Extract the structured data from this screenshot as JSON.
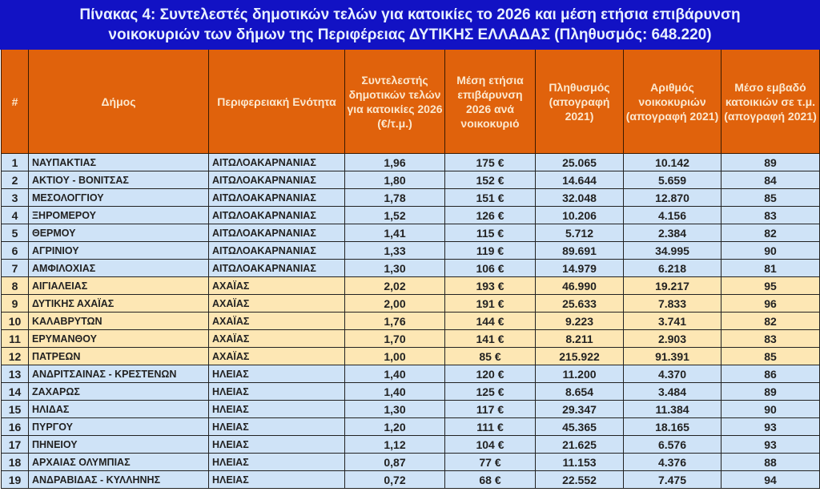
{
  "title": {
    "line1": "Πίνακας 4: Συντελεστές δημοτικών τελών για κατοικίες το 2026 και μέση ετήσια επιβάρυνση",
    "line2": "νοικοκυριών των δήμων της Περιφέρειας ΔΥΤΙΚΗΣ ΕΛΛΑΔΑΣ  (Πληθυσμός: 648.220)"
  },
  "colors": {
    "title_bg": "#1212c4",
    "header_bg": "#e0620c",
    "row_blue": "#cfe3f7",
    "row_yellow": "#fde7b4"
  },
  "headers": [
    "#",
    "Δήμος",
    "Περιφερειακή Ενότητα",
    "Συντελεστής δημοτικών τελών για κατοικίες 2026 (€/τ.μ.)",
    "Μέση ετήσια επιβάρυνση 2026 ανά νοικοκυριό",
    "Πληθυσμός (απογραφή 2021)",
    "Αριθμός νοικοκυριών (απογραφή 2021)",
    "Μέσο εμβαδό κατοικιών σε τ.μ. (απογραφή 2021)"
  ],
  "rows": [
    [
      "1",
      "ΝΑΥΠΑΚΤΙΑΣ",
      "ΑΙΤΩΛΟΑΚΑΡΝΑΝΙΑΣ",
      "1,96",
      "175 €",
      "25.065",
      "10.142",
      "89"
    ],
    [
      "2",
      "ΑΚΤΙΟΥ - ΒΟΝΙΤΣΑΣ",
      "ΑΙΤΩΛΟΑΚΑΡΝΑΝΙΑΣ",
      "1,80",
      "152 €",
      "14.644",
      "5.659",
      "84"
    ],
    [
      "3",
      "ΜΕΣΟΛΟΓΓΙΟΥ",
      "ΑΙΤΩΛΟΑΚΑΡΝΑΝΙΑΣ",
      "1,78",
      "151 €",
      "32.048",
      "12.870",
      "85"
    ],
    [
      "4",
      "ΞΗΡΟΜΕΡΟΥ",
      "ΑΙΤΩΛΟΑΚΑΡΝΑΝΙΑΣ",
      "1,52",
      "126 €",
      "10.206",
      "4.156",
      "83"
    ],
    [
      "5",
      "ΘΕΡΜΟΥ",
      "ΑΙΤΩΛΟΑΚΑΡΝΑΝΙΑΣ",
      "1,41",
      "115 €",
      "5.712",
      "2.384",
      "82"
    ],
    [
      "6",
      "ΑΓΡΙΝΙΟΥ",
      "ΑΙΤΩΛΟΑΚΑΡΝΑΝΙΑΣ",
      "1,33",
      "119 €",
      "89.691",
      "34.995",
      "90"
    ],
    [
      "7",
      "ΑΜΦΙΛΟΧΙΑΣ",
      "ΑΙΤΩΛΟΑΚΑΡΝΑΝΙΑΣ",
      "1,30",
      "106 €",
      "14.979",
      "6.218",
      "81"
    ],
    [
      "8",
      "ΑΙΓΙΑΛΕΙΑΣ",
      "ΑΧΑΪΑΣ",
      "2,02",
      "193 €",
      "46.990",
      "19.217",
      "95"
    ],
    [
      "9",
      "ΔΥΤΙΚΗΣ ΑΧΑΪΑΣ",
      "ΑΧΑΪΑΣ",
      "2,00",
      "191 €",
      "25.633",
      "7.833",
      "96"
    ],
    [
      "10",
      "ΚΑΛΑΒΡΥΤΩΝ",
      "ΑΧΑΪΑΣ",
      "1,76",
      "144 €",
      "9.223",
      "3.741",
      "82"
    ],
    [
      "11",
      "ΕΡΥΜΑΝΘΟΥ",
      "ΑΧΑΪΑΣ",
      "1,70",
      "141 €",
      "8.211",
      "2.903",
      "83"
    ],
    [
      "12",
      "ΠΑΤΡΕΩΝ",
      "ΑΧΑΪΑΣ",
      "1,00",
      "85 €",
      "215.922",
      "91.391",
      "85"
    ],
    [
      "13",
      "ΑΝΔΡΙΤΣΑΙΝΑΣ - ΚΡΕΣΤΕΝΩΝ",
      "ΗΛΕΙΑΣ",
      "1,40",
      "120 €",
      "11.200",
      "4.370",
      "86"
    ],
    [
      "14",
      "ΖΑΧΑΡΩΣ",
      "ΗΛΕΙΑΣ",
      "1,40",
      "125 €",
      "8.654",
      "3.484",
      "89"
    ],
    [
      "15",
      "ΗΛΙΔΑΣ",
      "ΗΛΕΙΑΣ",
      "1,30",
      "117 €",
      "29.347",
      "11.384",
      "90"
    ],
    [
      "16",
      "ΠΥΡΓΟΥ",
      "ΗΛΕΙΑΣ",
      "1,20",
      "111 €",
      "45.365",
      "18.165",
      "93"
    ],
    [
      "17",
      "ΠΗΝΕΙΟΥ",
      "ΗΛΕΙΑΣ",
      "1,12",
      "104 €",
      "21.625",
      "6.576",
      "93"
    ],
    [
      "18",
      "ΑΡΧΑΙΑΣ ΟΛΥΜΠΙΑΣ",
      "ΗΛΕΙΑΣ",
      "0,87",
      "77 €",
      "11.153",
      "4.376",
      "88"
    ],
    [
      "19",
      "ΑΝΔΡΑΒΙΔΑΣ - ΚΥΛΛΗΝΗΣ",
      "ΗΛΕΙΑΣ",
      "0,72",
      "68 €",
      "22.552",
      "7.475",
      "94"
    ]
  ]
}
